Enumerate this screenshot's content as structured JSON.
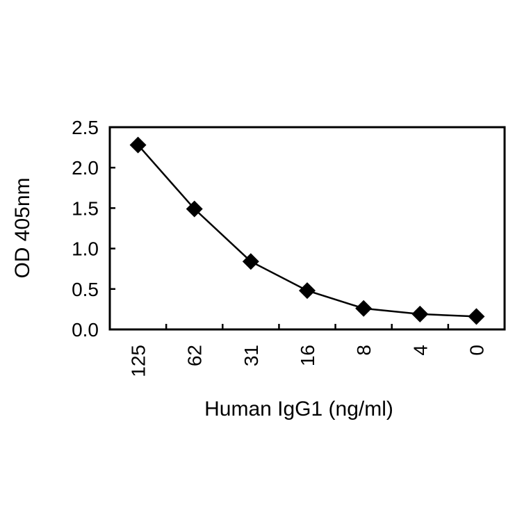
{
  "chart_data": {
    "type": "line",
    "title": "",
    "xlabel": "Human IgG1 (ng/ml)",
    "ylabel": "OD 405nm",
    "categories": [
      "125",
      "62",
      "31",
      "16",
      "8",
      "4",
      "0"
    ],
    "series": [
      {
        "values": [
          2.28,
          1.49,
          0.84,
          0.48,
          0.26,
          0.19,
          0.16
        ],
        "marker": "diamond",
        "color": "#000000"
      }
    ],
    "ylim": [
      0,
      2.5
    ],
    "yticks": [
      "0.0",
      "0.5",
      "1.0",
      "1.5",
      "2.0",
      "2.5"
    ],
    "grid": false,
    "legend": "none"
  }
}
